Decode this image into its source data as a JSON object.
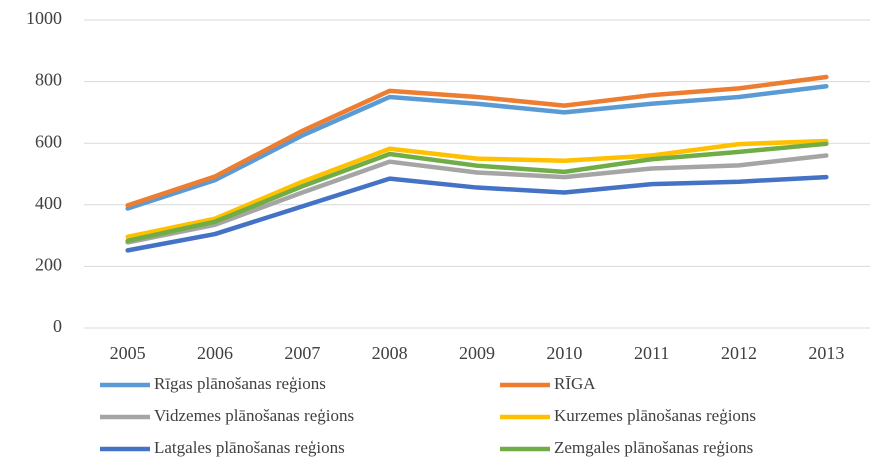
{
  "chart_data": {
    "type": "line",
    "categories": [
      "2005",
      "2006",
      "2007",
      "2008",
      "2009",
      "2010",
      "2011",
      "2012",
      "2013"
    ],
    "series": [
      {
        "name": "Rīgas plānošanas reģions",
        "color": "#5b9bd5",
        "values": [
          388,
          480,
          625,
          750,
          728,
          700,
          728,
          750,
          785
        ]
      },
      {
        "name": "RĪGA",
        "color": "#ed7d31",
        "values": [
          398,
          492,
          640,
          770,
          750,
          722,
          756,
          778,
          815
        ]
      },
      {
        "name": "Vidzemes plānošanas reģions",
        "color": "#a5a5a5",
        "values": [
          278,
          335,
          440,
          540,
          505,
          490,
          518,
          528,
          560
        ]
      },
      {
        "name": "Kurzemes plānošanas reģions",
        "color": "#ffc000",
        "values": [
          296,
          355,
          475,
          582,
          550,
          543,
          560,
          597,
          607
        ]
      },
      {
        "name": "Latgales plānošanas reģions",
        "color": "#4472c4",
        "values": [
          252,
          305,
          395,
          485,
          456,
          440,
          467,
          475,
          490
        ]
      },
      {
        "name": "Zemgales plānošanas reģions",
        "color": "#70ad47",
        "values": [
          283,
          345,
          460,
          565,
          527,
          507,
          548,
          572,
          598
        ]
      }
    ],
    "ylim": [
      0,
      1000
    ],
    "yticks": [
      0,
      200,
      400,
      600,
      800,
      1000
    ],
    "grid": true,
    "legend": "bottom"
  }
}
